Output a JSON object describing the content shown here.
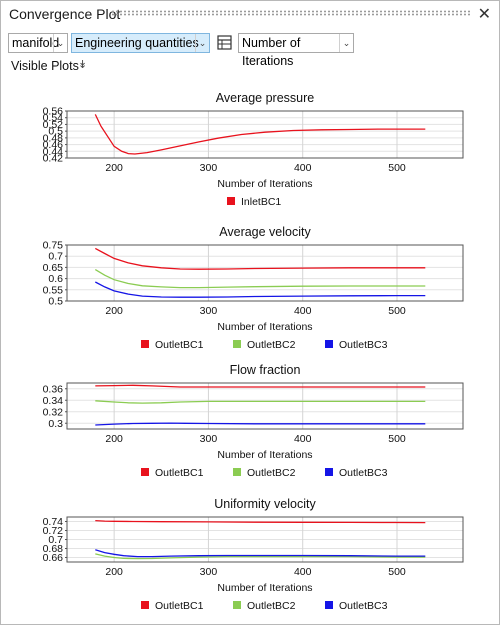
{
  "window": {
    "title": "Convergence Plot",
    "close_icon": "close-icon"
  },
  "toolbar": {
    "model_select": "manifold",
    "quantity_select": "Engineering quantities",
    "table_icon": "table-icon",
    "xaxis_select": "Number of Iterations"
  },
  "visible_plots": {
    "label": "Visible Plots",
    "icon": "double-chevron-down-icon"
  },
  "chart_data": [
    {
      "type": "line",
      "title": "Average pressure",
      "xlabel": "Number of Iterations",
      "ylabel": "",
      "xlim": [
        150,
        570
      ],
      "ylim": [
        0.42,
        0.56
      ],
      "xticks": [
        200,
        300,
        400,
        500
      ],
      "yticks": [
        "0.56",
        "0.54",
        "0.52",
        "0.5",
        "0.48",
        "0.46",
        "0.44",
        "0.42"
      ],
      "grid": true,
      "legend_position": "bottom",
      "series": [
        {
          "name": "InletBC1",
          "color": "#e8121d",
          "x": [
            180,
            186,
            193,
            200,
            208,
            215,
            222,
            235,
            250,
            270,
            290,
            310,
            335,
            360,
            390,
            420,
            450,
            480,
            500,
            530
          ],
          "y": [
            0.55,
            0.515,
            0.485,
            0.455,
            0.44,
            0.433,
            0.432,
            0.436,
            0.444,
            0.456,
            0.468,
            0.479,
            0.49,
            0.497,
            0.502,
            0.504,
            0.505,
            0.506,
            0.506,
            0.506
          ]
        }
      ]
    },
    {
      "type": "line",
      "title": "Average velocity",
      "xlabel": "Number of Iterations",
      "ylabel": "",
      "xlim": [
        150,
        570
      ],
      "ylim": [
        0.5,
        0.75
      ],
      "xticks": [
        200,
        300,
        400,
        500
      ],
      "yticks": [
        "0.75",
        "0.7",
        "0.65",
        "0.6",
        "0.55",
        "0.5"
      ],
      "grid": true,
      "legend_position": "bottom",
      "series": [
        {
          "name": "OutletBC1",
          "color": "#e8121d",
          "x": [
            180,
            190,
            200,
            215,
            230,
            250,
            270,
            290,
            320,
            350,
            400,
            450,
            500,
            530
          ],
          "y": [
            0.735,
            0.712,
            0.69,
            0.67,
            0.657,
            0.648,
            0.643,
            0.642,
            0.643,
            0.645,
            0.647,
            0.648,
            0.648,
            0.648
          ]
        },
        {
          "name": "OutletBC2",
          "color": "#8bcc52",
          "x": [
            180,
            190,
            200,
            215,
            230,
            250,
            270,
            290,
            320,
            350,
            400,
            450,
            500,
            530
          ],
          "y": [
            0.64,
            0.615,
            0.595,
            0.578,
            0.568,
            0.563,
            0.56,
            0.56,
            0.562,
            0.564,
            0.566,
            0.567,
            0.567,
            0.567
          ]
        },
        {
          "name": "OutletBC3",
          "color": "#1515e6",
          "x": [
            180,
            190,
            200,
            215,
            230,
            250,
            270,
            290,
            320,
            350,
            400,
            450,
            500,
            530
          ],
          "y": [
            0.585,
            0.563,
            0.545,
            0.531,
            0.522,
            0.518,
            0.517,
            0.517,
            0.518,
            0.52,
            0.522,
            0.523,
            0.524,
            0.524
          ]
        }
      ]
    },
    {
      "type": "line",
      "title": "Flow fraction",
      "xlabel": "Number of Iterations",
      "ylabel": "",
      "xlim": [
        150,
        570
      ],
      "ylim": [
        0.29,
        0.37
      ],
      "xticks": [
        200,
        300,
        400,
        500
      ],
      "yticks": [
        "0.36",
        "0.34",
        "0.32",
        "0.3"
      ],
      "grid": true,
      "legend_position": "bottom",
      "series": [
        {
          "name": "OutletBC1",
          "color": "#e8121d",
          "x": [
            180,
            200,
            220,
            240,
            270,
            300,
            350,
            400,
            450,
            500,
            530
          ],
          "y": [
            0.365,
            0.3655,
            0.366,
            0.365,
            0.363,
            0.363,
            0.363,
            0.363,
            0.363,
            0.363,
            0.363
          ]
        },
        {
          "name": "OutletBC2",
          "color": "#8bcc52",
          "x": [
            180,
            200,
            215,
            230,
            250,
            270,
            300,
            350,
            400,
            450,
            500,
            530
          ],
          "y": [
            0.339,
            0.337,
            0.3355,
            0.335,
            0.3355,
            0.337,
            0.338,
            0.338,
            0.338,
            0.338,
            0.338,
            0.338
          ]
        },
        {
          "name": "OutletBC3",
          "color": "#1515e6",
          "x": [
            180,
            200,
            220,
            240,
            260,
            275,
            300,
            350,
            400,
            450,
            500,
            530
          ],
          "y": [
            0.297,
            0.2985,
            0.2995,
            0.3,
            0.3003,
            0.3,
            0.2995,
            0.299,
            0.299,
            0.299,
            0.299,
            0.299
          ]
        }
      ]
    },
    {
      "type": "line",
      "title": "Uniformity velocity",
      "xlabel": "Number of Iterations",
      "ylabel": "",
      "xlim": [
        150,
        570
      ],
      "ylim": [
        0.65,
        0.75
      ],
      "xticks": [
        200,
        300,
        400,
        500
      ],
      "yticks": [
        "0.74",
        "0.72",
        "0.7",
        "0.68",
        "0.66"
      ],
      "grid": true,
      "legend_position": "bottom",
      "series": [
        {
          "name": "OutletBC1",
          "color": "#e8121d",
          "x": [
            180,
            190,
            200,
            220,
            250,
            300,
            350,
            400,
            450,
            500,
            530
          ],
          "y": [
            0.742,
            0.741,
            0.7405,
            0.74,
            0.7395,
            0.739,
            0.7385,
            0.7382,
            0.738,
            0.7378,
            0.7375
          ]
        },
        {
          "name": "OutletBC2",
          "color": "#8bcc52",
          "x": [
            180,
            190,
            200,
            210,
            225,
            240,
            260,
            290,
            320,
            350,
            400,
            450,
            500,
            530
          ],
          "y": [
            0.668,
            0.663,
            0.66,
            0.658,
            0.6575,
            0.6578,
            0.659,
            0.661,
            0.662,
            0.662,
            0.662,
            0.662,
            0.661,
            0.661
          ]
        },
        {
          "name": "OutletBC3",
          "color": "#1515e6",
          "x": [
            180,
            190,
            200,
            210,
            225,
            240,
            260,
            290,
            320,
            350,
            400,
            450,
            500,
            530
          ],
          "y": [
            0.677,
            0.671,
            0.667,
            0.664,
            0.662,
            0.662,
            0.663,
            0.664,
            0.6645,
            0.6645,
            0.6645,
            0.664,
            0.663,
            0.663
          ]
        }
      ]
    }
  ]
}
